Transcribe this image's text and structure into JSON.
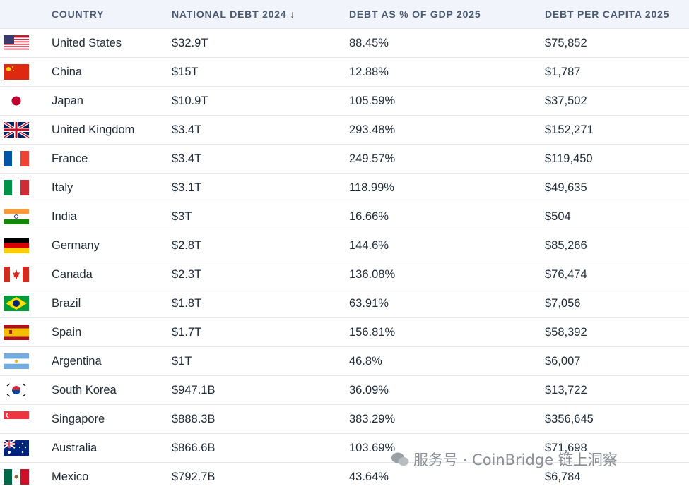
{
  "table": {
    "header": [
      "COUNTRY",
      "NATIONAL DEBT 2024 ↓",
      "DEBT AS % OF GDP 2025",
      "DEBT PER CAPITA 2025"
    ],
    "rows": [
      [
        "United States",
        "$32.9T",
        "88.45%",
        "$75,852"
      ],
      [
        "China",
        "$15T",
        "12.88%",
        "$1,787"
      ],
      [
        "Japan",
        "$10.9T",
        "105.59%",
        "$37,502"
      ],
      [
        "United Kingdom",
        "$3.4T",
        "293.48%",
        "$152,271"
      ],
      [
        "France",
        "$3.4T",
        "249.57%",
        "$119,450"
      ],
      [
        "Italy",
        "$3.1T",
        "118.99%",
        "$49,635"
      ],
      [
        "India",
        "$3T",
        "16.66%",
        "$504"
      ],
      [
        "Germany",
        "$2.8T",
        "144.6%",
        "$85,266"
      ],
      [
        "Canada",
        "$2.3T",
        "136.08%",
        "$76,474"
      ],
      [
        "Brazil",
        "$1.8T",
        "63.91%",
        "$7,056"
      ],
      [
        "Spain",
        "$1.7T",
        "156.81%",
        "$58,392"
      ],
      [
        "Argentina",
        "$1T",
        "46.8%",
        "$6,007"
      ],
      [
        "South Korea",
        "$947.1B",
        "36.09%",
        "$13,722"
      ],
      [
        "Singapore",
        "$888.3B",
        "383.29%",
        "$356,645"
      ],
      [
        "Australia",
        "$866.6B",
        "103.69%",
        "$71,698"
      ],
      [
        "Mexico",
        "$792.7B",
        "43.64%",
        "$6,784"
      ]
    ]
  },
  "watermark": "服务号 · CoinBridge 链上洞察"
}
